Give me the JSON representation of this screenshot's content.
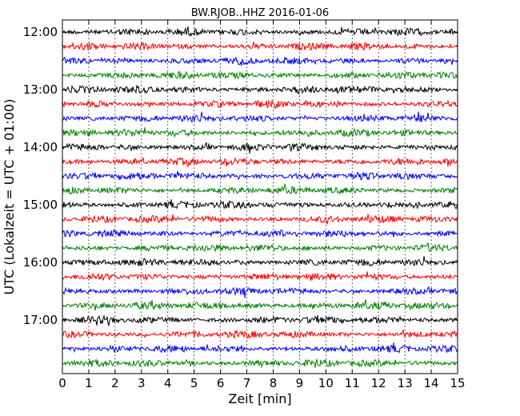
{
  "chart_data": {
    "type": "line",
    "title": "BW.RJOB..HHZ 2016-01-06",
    "xlabel": "Zeit  [min]",
    "ylabel": "UTC (Lokalzeit = UTC + 01:00)",
    "xlim": [
      0,
      15
    ],
    "x_ticks": [
      "0",
      "1",
      "2",
      "3",
      "4",
      "5",
      "6",
      "7",
      "8",
      "9",
      "10",
      "11",
      "12",
      "13",
      "14",
      "15"
    ],
    "y_tick_labels": [
      "12:00",
      "13:00",
      "14:00",
      "15:00",
      "16:00",
      "17:00"
    ],
    "grid": "vertical dotted",
    "trace_interval_minutes": 15,
    "trace_start_times": [
      "12:00",
      "12:15",
      "12:30",
      "12:45",
      "13:00",
      "13:15",
      "13:30",
      "13:45",
      "14:00",
      "14:15",
      "14:30",
      "14:45",
      "15:00",
      "15:15",
      "15:30",
      "15:45",
      "16:00",
      "16:15",
      "16:30",
      "16:45",
      "17:00",
      "17:15",
      "17:30",
      "17:45"
    ],
    "trace_colors": [
      "#000000",
      "#ff0000",
      "#0000ff",
      "#008000"
    ]
  }
}
